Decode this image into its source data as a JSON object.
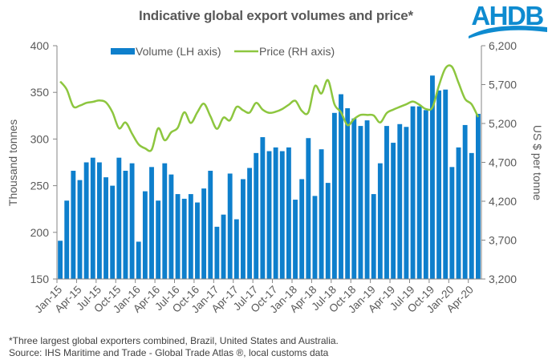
{
  "logo": {
    "text": "AHDB",
    "color": "#0E8BD0"
  },
  "footnote": {
    "line1": "*Three  largest global  exporters combined, Brazil, United States and Australia.",
    "line2": "Source: IHS Maritime and Trade  - Global Trade  Atlas ®, local customs data"
  },
  "chart_data": {
    "type": "bar+line",
    "title": "Indicative global export volumes and price*",
    "xlabel": "",
    "ylabel": "Thousand tonnes",
    "y2label": "US $ per tonne",
    "ylim": [
      150,
      400
    ],
    "yticks": [
      150,
      200,
      250,
      300,
      350,
      400
    ],
    "y2lim": [
      3200,
      6200
    ],
    "y2ticks": [
      "3,200",
      "3,700",
      "4,200",
      "4,700",
      "5,200",
      "5,700",
      "6,200"
    ],
    "y2tick_values": [
      3200,
      3700,
      4200,
      4700,
      5200,
      5700,
      6200
    ],
    "grid": false,
    "legend_position": "top-center",
    "x_tick_labels": [
      "Jan-15",
      "Apr-15",
      "Jul-15",
      "Oct-15",
      "Jan-16",
      "Apr-16",
      "Jul-16",
      "Oct-16",
      "Jan-17",
      "Apr-17",
      "Jul-17",
      "Oct-17",
      "Jan-18",
      "Apr-18",
      "Jul-18",
      "Oct-18",
      "Jan-19",
      "Apr-19",
      "Jul-19",
      "Oct-19",
      "Jan-20",
      "Apr-20"
    ],
    "x_tick_every": 3,
    "categories": [
      "Jan-15",
      "Feb-15",
      "Mar-15",
      "Apr-15",
      "May-15",
      "Jun-15",
      "Jul-15",
      "Aug-15",
      "Sep-15",
      "Oct-15",
      "Nov-15",
      "Dec-15",
      "Jan-16",
      "Feb-16",
      "Mar-16",
      "Apr-16",
      "May-16",
      "Jun-16",
      "Jul-16",
      "Aug-16",
      "Sep-16",
      "Oct-16",
      "Nov-16",
      "Dec-16",
      "Jan-17",
      "Feb-17",
      "Mar-17",
      "Apr-17",
      "May-17",
      "Jun-17",
      "Jul-17",
      "Aug-17",
      "Sep-17",
      "Oct-17",
      "Nov-17",
      "Dec-17",
      "Jan-18",
      "Feb-18",
      "Mar-18",
      "Apr-18",
      "May-18",
      "Jun-18",
      "Jul-18",
      "Aug-18",
      "Sep-18",
      "Oct-18",
      "Nov-18",
      "Dec-18",
      "Jan-19",
      "Feb-19",
      "Mar-19",
      "Apr-19",
      "May-19",
      "Jun-19",
      "Jul-19",
      "Aug-19",
      "Sep-19",
      "Oct-19",
      "Nov-19",
      "Dec-19",
      "Jan-20",
      "Feb-20",
      "Mar-20",
      "Apr-20",
      "May-20"
    ],
    "series": [
      {
        "name": "Volume (LH axis)",
        "type": "bar",
        "axis": "left",
        "color": "#0E7FCC",
        "values": [
          191,
          234,
          266,
          256,
          275,
          280,
          275,
          259,
          250,
          280,
          266,
          274,
          190,
          244,
          270,
          234,
          274,
          262,
          241,
          236,
          241,
          232,
          247,
          266,
          206,
          219,
          263,
          214,
          257,
          269,
          285,
          302,
          287,
          291,
          287,
          291,
          235,
          257,
          301,
          239,
          289,
          253,
          328,
          348,
          333,
          322,
          314,
          320,
          241,
          274,
          314,
          296,
          316,
          313,
          335,
          335,
          331,
          368,
          352,
          353,
          270,
          291,
          315,
          285,
          327
        ]
      },
      {
        "name": "Price (RH axis)",
        "type": "line",
        "axis": "right",
        "color": "#8DC63F",
        "values": [
          5740,
          5636,
          5420,
          5430,
          5465,
          5478,
          5496,
          5471,
          5344,
          5138,
          5213,
          5069,
          4932,
          4880,
          4863,
          5138,
          4984,
          5087,
          5145,
          5344,
          5207,
          5344,
          5454,
          5293,
          5131,
          5275,
          5241,
          5413,
          5370,
          5340,
          5465,
          5378,
          5337,
          5351,
          5386,
          5441,
          5492,
          5362,
          5344,
          5681,
          5585,
          5757,
          5447,
          5344,
          5179,
          5258,
          5310,
          5310,
          5303,
          5213,
          5334,
          5378,
          5413,
          5447,
          5482,
          5441,
          5386,
          5406,
          5688,
          5911,
          5928,
          5723,
          5516,
          5447,
          5282
        ]
      }
    ]
  }
}
